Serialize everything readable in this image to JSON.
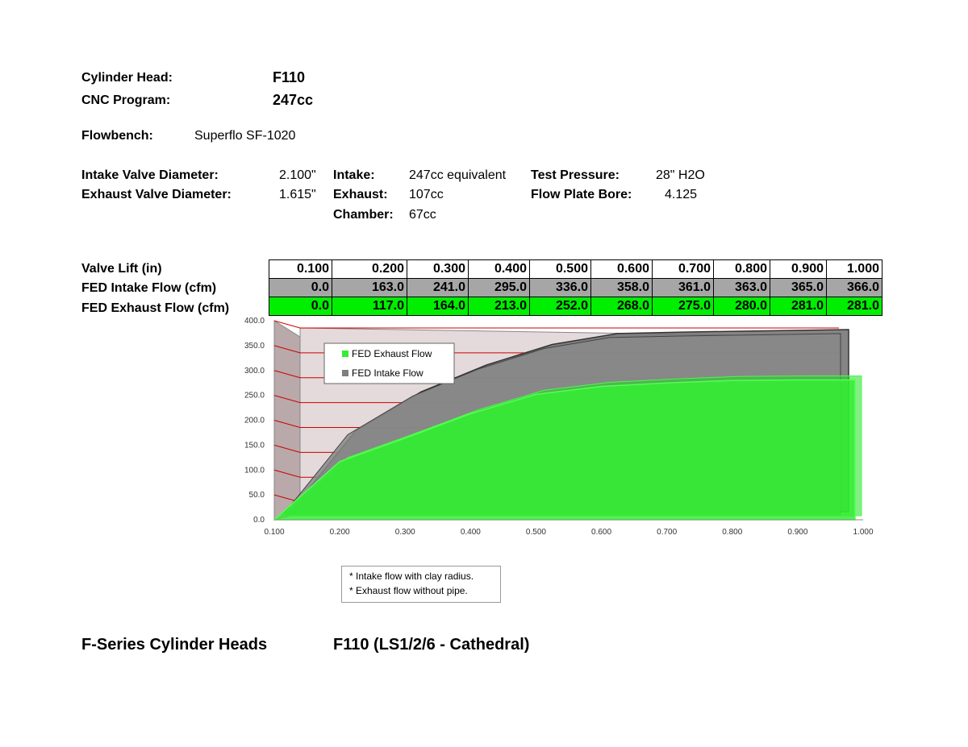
{
  "header": {
    "cylinder_head_label": "Cylinder Head:",
    "cylinder_head_value": "F110",
    "cnc_program_label": "CNC Program:",
    "cnc_program_value": "247cc",
    "flowbench_label": "Flowbench:",
    "flowbench_value": "Superflo SF-1020"
  },
  "specs": {
    "intake_valve_label": "Intake Valve Diameter:",
    "intake_valve_value": "2.100\"",
    "exhaust_valve_label": "Exhaust Valve Diameter:",
    "exhaust_valve_value": "1.615\"",
    "intake_label": "Intake:",
    "intake_value": "247cc equivalent",
    "exhaust_label": "Exhaust:",
    "exhaust_value": "107cc",
    "chamber_label": "Chamber:",
    "chamber_value": "67cc",
    "test_pressure_label": "Test Pressure:",
    "test_pressure_value": "28\" H2O",
    "flow_plate_label": "Flow Plate Bore:",
    "flow_plate_value": "4.125"
  },
  "table": {
    "lift_label": "Valve Lift (in)",
    "intake_label": "FED Intake Flow (cfm)",
    "exhaust_label": "FED Exhaust Flow (cfm)",
    "lift": [
      "0.100",
      "0.200",
      "0.300",
      "0.400",
      "0.500",
      "0.600",
      "0.700",
      "0.800",
      "0.900",
      "1.000"
    ],
    "intake": [
      "0.0",
      "163.0",
      "241.0",
      "295.0",
      "336.0",
      "358.0",
      "361.0",
      "363.0",
      "365.0",
      "366.0"
    ],
    "exhaust": [
      "0.0",
      "117.0",
      "164.0",
      "213.0",
      "252.0",
      "268.0",
      "275.0",
      "280.0",
      "281.0",
      "281.0"
    ]
  },
  "chart_data": {
    "type": "area",
    "x": [
      0.1,
      0.2,
      0.3,
      0.4,
      0.5,
      0.6,
      0.7,
      0.8,
      0.9,
      1.0
    ],
    "x_tick_labels": [
      "0.100",
      "0.200",
      "0.300",
      "0.400",
      "0.500",
      "0.600",
      "0.700",
      "0.800",
      "0.900",
      "1.000"
    ],
    "y_tick_labels": [
      "0.0",
      "50.0",
      "100.0",
      "150.0",
      "200.0",
      "250.0",
      "300.0",
      "350.0",
      "400.0"
    ],
    "ylim": [
      0,
      400
    ],
    "xlim": [
      0.1,
      1.0
    ],
    "series": [
      {
        "name": "FED Intake Flow",
        "values": [
          0,
          163,
          241,
          295,
          336,
          358,
          361,
          363,
          365,
          366
        ],
        "color": "#7f7f7f"
      },
      {
        "name": "FED Exhaust Flow",
        "values": [
          0,
          117,
          164,
          213,
          252,
          268,
          275,
          280,
          281,
          281
        ],
        "color": "#33ee33"
      }
    ],
    "legend_position": "top-left",
    "grid": true,
    "grid_color": "#cc0000",
    "style": "3d"
  },
  "notes": {
    "line1": "* Intake flow with clay radius.",
    "line2": "* Exhaust flow without pipe."
  },
  "footer": {
    "series": "F-Series Cylinder Heads",
    "model": "F110 (LS1/2/6 - Cathedral)"
  }
}
